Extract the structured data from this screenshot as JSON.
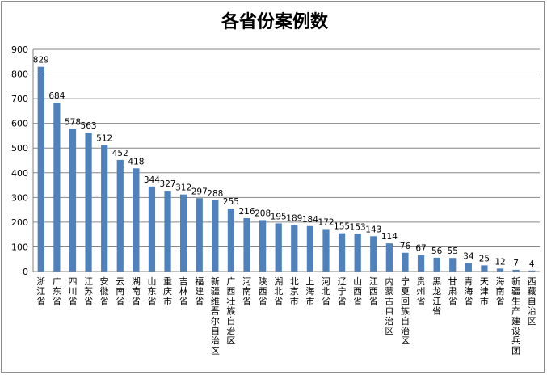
{
  "chart_data": {
    "type": "bar",
    "title": "各省份案例数",
    "xlabel": "",
    "ylabel": "",
    "ylim": [
      0,
      900
    ],
    "yticks": [
      0,
      100,
      200,
      300,
      400,
      500,
      600,
      700,
      800,
      900
    ],
    "grid": true,
    "legend": "none",
    "bar_color": "#4f81bd",
    "categories": [
      "浙江省",
      "广东省",
      "四川省",
      "江苏省",
      "安徽省",
      "云南省",
      "湖南省",
      "山东省",
      "重庆市",
      "吉林省",
      "福建省",
      "新疆维吾尔自治区",
      "广西壮族自治区",
      "河南省",
      "陕西省",
      "湖北省",
      "北京市",
      "上海市",
      "河北省",
      "辽宁省",
      "山西省",
      "江西省",
      "内蒙古自治区",
      "宁夏回族自治区",
      "贵州省",
      "黑龙江省",
      "甘肃省",
      "青海省",
      "天津市",
      "海南省",
      "新疆生产建设兵团",
      "西藏自治区"
    ],
    "values": [
      829,
      684,
      578,
      563,
      512,
      452,
      418,
      344,
      327,
      312,
      297,
      288,
      255,
      216,
      208,
      195,
      189,
      184,
      172,
      155,
      153,
      143,
      114,
      76,
      67,
      56,
      55,
      34,
      25,
      12,
      7,
      4
    ]
  }
}
